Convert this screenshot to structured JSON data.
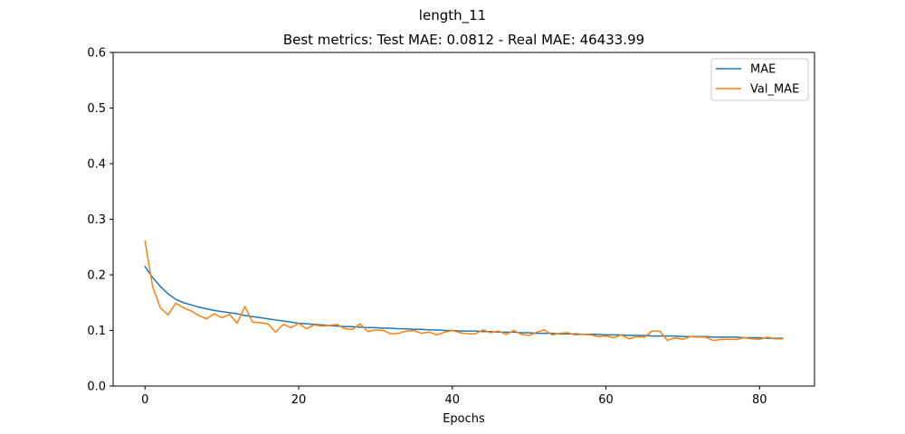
{
  "chart_data": {
    "type": "line",
    "suptitle": "length_11",
    "title": "Best metrics: Test MAE: 0.0812 - Real MAE: 46433.99",
    "xlabel": "Epochs",
    "ylabel": "",
    "xlim": [
      -4.15,
      87.15
    ],
    "ylim": [
      0,
      0.6
    ],
    "xticks": [
      0,
      20,
      40,
      60,
      80
    ],
    "yticks": [
      0.0,
      0.1,
      0.2,
      0.3,
      0.4,
      0.5,
      0.6
    ],
    "xtick_labels": [
      "0",
      "20",
      "40",
      "60",
      "80"
    ],
    "ytick_labels": [
      "0.0",
      "0.1",
      "0.2",
      "0.3",
      "0.4",
      "0.5",
      "0.6"
    ],
    "grid": false,
    "legend_position": "upper right",
    "x": [
      0,
      1,
      2,
      3,
      4,
      5,
      6,
      7,
      8,
      9,
      10,
      11,
      12,
      13,
      14,
      15,
      16,
      17,
      18,
      19,
      20,
      21,
      22,
      23,
      24,
      25,
      26,
      27,
      28,
      29,
      30,
      31,
      32,
      33,
      34,
      35,
      36,
      37,
      38,
      39,
      40,
      41,
      42,
      43,
      44,
      45,
      46,
      47,
      48,
      49,
      50,
      51,
      52,
      53,
      54,
      55,
      56,
      57,
      58,
      59,
      60,
      61,
      62,
      63,
      64,
      65,
      66,
      67,
      68,
      69,
      70,
      71,
      72,
      73,
      74,
      75,
      76,
      77,
      78,
      79,
      80,
      81,
      82,
      83
    ],
    "series": [
      {
        "name": "MAE",
        "color": "#1f77b4",
        "values": [
          0.215,
          0.195,
          0.179,
          0.166,
          0.156,
          0.15,
          0.146,
          0.142,
          0.139,
          0.136,
          0.134,
          0.132,
          0.13,
          0.127,
          0.125,
          0.123,
          0.121,
          0.119,
          0.117,
          0.115,
          0.113,
          0.112,
          0.111,
          0.11,
          0.109,
          0.108,
          0.107,
          0.107,
          0.106,
          0.105,
          0.105,
          0.104,
          0.104,
          0.103,
          0.103,
          0.102,
          0.102,
          0.101,
          0.101,
          0.1,
          0.1,
          0.099,
          0.099,
          0.099,
          0.098,
          0.098,
          0.097,
          0.097,
          0.097,
          0.096,
          0.096,
          0.095,
          0.095,
          0.095,
          0.094,
          0.094,
          0.094,
          0.093,
          0.093,
          0.093,
          0.092,
          0.092,
          0.092,
          0.091,
          0.091,
          0.091,
          0.09,
          0.09,
          0.09,
          0.09,
          0.089,
          0.089,
          0.089,
          0.089,
          0.088,
          0.088,
          0.088,
          0.088,
          0.087,
          0.087,
          0.087,
          0.086,
          0.086,
          0.086
        ]
      },
      {
        "name": "Val_MAE",
        "color": "#ff7f0e",
        "values": [
          0.261,
          0.178,
          0.141,
          0.128,
          0.149,
          0.141,
          0.135,
          0.127,
          0.121,
          0.13,
          0.123,
          0.129,
          0.113,
          0.143,
          0.115,
          0.114,
          0.112,
          0.097,
          0.111,
          0.105,
          0.113,
          0.103,
          0.11,
          0.108,
          0.109,
          0.111,
          0.103,
          0.102,
          0.112,
          0.098,
          0.101,
          0.1,
          0.094,
          0.095,
          0.099,
          0.1,
          0.095,
          0.097,
          0.092,
          0.097,
          0.1,
          0.096,
          0.094,
          0.094,
          0.101,
          0.096,
          0.099,
          0.093,
          0.1,
          0.093,
          0.091,
          0.097,
          0.101,
          0.092,
          0.095,
          0.096,
          0.092,
          0.093,
          0.092,
          0.089,
          0.09,
          0.087,
          0.092,
          0.085,
          0.089,
          0.088,
          0.099,
          0.099,
          0.082,
          0.087,
          0.084,
          0.089,
          0.088,
          0.088,
          0.082,
          0.084,
          0.084,
          0.084,
          0.087,
          0.085,
          0.084,
          0.088,
          0.085,
          0.085
        ]
      }
    ]
  }
}
